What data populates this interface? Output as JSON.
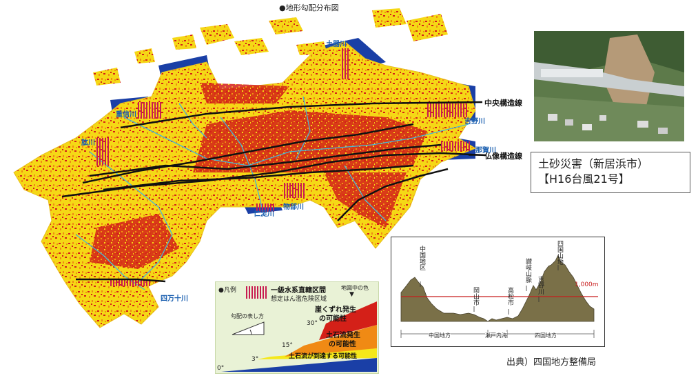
{
  "map": {
    "title": "●地形勾配分布図",
    "rivers": [
      "土器川",
      "重信川",
      "吉野川",
      "肱川",
      "那賀川",
      "仁淀川",
      "物部川",
      "四万十川"
    ],
    "faults": [
      "中央構造線",
      "仏像構造線"
    ],
    "colors": {
      "red": "#d42018",
      "orange": "#f08a14",
      "yellow": "#f5d816",
      "blue": "#1a3fa6",
      "river": "#46b6d8",
      "hatch": "#c81c50"
    }
  },
  "photo": {
    "caption_line1": "土砂災害（新居浜市）",
    "caption_line2": "【H16台風21号】"
  },
  "legend": {
    "title": "●凡例",
    "hatch_label": "一級水系直轄区間",
    "hatch_sub": "想定はん濫危険区域",
    "color_header": "地図中の色",
    "slope_caption": "勾配の表し方",
    "cat1": "崖くずれ発生の可能性",
    "cat1a": "崖くずれ発生",
    "cat1b": "の可能性",
    "cat2a": "土石流発生",
    "cat2b": "の可能性",
    "cat3": "土石流が到達する可能性",
    "deg30": "30°",
    "deg15": "15°",
    "deg3": "3°",
    "deg0": "0°"
  },
  "profile": {
    "labels": [
      "中国地区",
      "岡山市",
      "高松市",
      "讃岐山脈",
      "吉野川",
      "四国山地"
    ],
    "elevation": "1,000m",
    "regions": [
      "中国地方",
      "瀬戸内海",
      "四国地方"
    ]
  },
  "source": "出典）四国地方整備局"
}
